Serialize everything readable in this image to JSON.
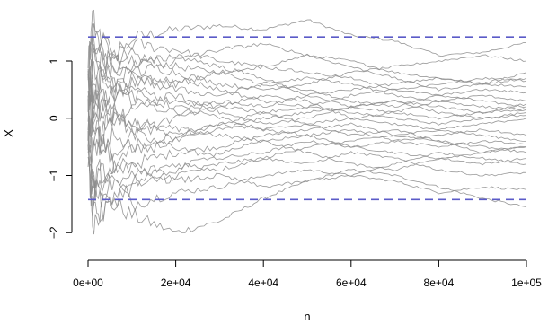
{
  "chart_data": {
    "type": "line",
    "title": "",
    "xlabel": "n",
    "ylabel": "X",
    "xlim": [
      0,
      100000
    ],
    "ylim": [
      -2.2,
      1.8
    ],
    "x_ticks": [
      {
        "value": 0,
        "label": "0e+00"
      },
      {
        "value": 20000,
        "label": "2e+04"
      },
      {
        "value": 40000,
        "label": "4e+04"
      },
      {
        "value": 60000,
        "label": "6e+04"
      },
      {
        "value": 80000,
        "label": "8e+04"
      },
      {
        "value": 100000,
        "label": "1e+05"
      }
    ],
    "y_ticks": [
      {
        "value": -2,
        "label": "−2"
      },
      {
        "value": -1,
        "label": "−1"
      },
      {
        "value": 0,
        "label": "0"
      },
      {
        "value": 1,
        "label": "1"
      }
    ],
    "reference_lines": [
      {
        "axis": "y",
        "value": 1.42,
        "style": "dashed",
        "color": "#5b5bc8"
      },
      {
        "axis": "y",
        "value": -1.42,
        "style": "dashed",
        "color": "#5b5bc8"
      }
    ],
    "series_color": "#8c8c8c",
    "grid": false,
    "legend": "none",
    "series": [
      {
        "x": [
          0,
          1000,
          3000,
          6000,
          10000,
          20000,
          30000,
          40000,
          50000,
          60000,
          70000,
          80000,
          90000,
          100000
        ],
        "values": [
          0.6,
          1.5,
          1.2,
          0.9,
          1.4,
          1.55,
          1.62,
          1.55,
          1.72,
          1.45,
          1.35,
          1.1,
          1.15,
          1.32
        ]
      },
      {
        "x": [
          0,
          1000,
          3000,
          6000,
          10000,
          20000,
          30000,
          40000,
          50000,
          60000,
          70000,
          80000,
          90000,
          100000
        ],
        "values": [
          -0.4,
          -1.8,
          -1.6,
          -1.5,
          -1.7,
          -2.0,
          -1.8,
          -1.4,
          -1.1,
          -0.9,
          -1.0,
          -1.2,
          -1.4,
          -1.55
        ]
      },
      {
        "x": [
          0,
          1000,
          3000,
          6000,
          10000,
          20000,
          30000,
          40000,
          50000,
          60000,
          70000,
          80000,
          90000,
          100000
        ],
        "values": [
          0.2,
          1.2,
          1.0,
          0.7,
          1.1,
          0.9,
          0.8,
          0.6,
          0.5,
          0.3,
          0.2,
          0.4,
          0.3,
          0.2
        ]
      },
      {
        "x": [
          0,
          1000,
          3000,
          6000,
          10000,
          20000,
          30000,
          40000,
          50000,
          60000,
          70000,
          80000,
          90000,
          100000
        ],
        "values": [
          -0.3,
          -1.4,
          -1.2,
          -1.0,
          -0.8,
          -0.6,
          -0.5,
          -0.3,
          -0.2,
          -0.1,
          -0.3,
          -0.4,
          -0.5,
          -0.6
        ]
      },
      {
        "x": [
          0,
          1000,
          3000,
          6000,
          10000,
          20000,
          30000,
          40000,
          50000,
          60000,
          70000,
          80000,
          90000,
          100000
        ],
        "values": [
          0.5,
          0.9,
          0.7,
          1.1,
          1.3,
          1.2,
          1.0,
          0.9,
          1.1,
          1.0,
          0.8,
          0.7,
          0.6,
          0.7
        ]
      },
      {
        "x": [
          0,
          1000,
          3000,
          6000,
          10000,
          20000,
          30000,
          40000,
          50000,
          60000,
          70000,
          80000,
          90000,
          100000
        ],
        "values": [
          -0.6,
          -1.0,
          -1.3,
          -1.1,
          -1.5,
          -1.3,
          -1.2,
          -1.0,
          -0.9,
          -1.0,
          -1.1,
          -1.3,
          -1.2,
          -1.25
        ]
      },
      {
        "x": [
          0,
          1000,
          3000,
          6000,
          10000,
          20000,
          30000,
          40000,
          50000,
          60000,
          70000,
          80000,
          90000,
          100000
        ],
        "values": [
          0.1,
          0.6,
          0.3,
          -0.2,
          0.2,
          0.4,
          0.1,
          -0.1,
          0.0,
          0.2,
          0.3,
          0.1,
          0.0,
          0.1
        ]
      },
      {
        "x": [
          0,
          1000,
          3000,
          6000,
          10000,
          20000,
          30000,
          40000,
          50000,
          60000,
          70000,
          80000,
          90000,
          100000
        ],
        "values": [
          -0.1,
          -0.7,
          -0.4,
          -0.6,
          -0.3,
          -0.5,
          -0.7,
          -0.6,
          -0.4,
          -0.5,
          -0.6,
          -0.7,
          -0.8,
          -0.7
        ]
      },
      {
        "x": [
          0,
          1000,
          3000,
          6000,
          10000,
          20000,
          30000,
          40000,
          50000,
          60000,
          70000,
          80000,
          90000,
          100000
        ],
        "values": [
          0.8,
          1.7,
          1.4,
          1.2,
          1.0,
          0.8,
          0.6,
          0.5,
          0.6,
          0.8,
          0.9,
          1.0,
          1.1,
          1.0
        ]
      },
      {
        "x": [
          0,
          1000,
          3000,
          6000,
          10000,
          20000,
          30000,
          40000,
          50000,
          60000,
          70000,
          80000,
          90000,
          100000
        ],
        "values": [
          -0.8,
          -1.5,
          -1.7,
          -1.4,
          -1.2,
          -1.0,
          -0.8,
          -0.7,
          -0.5,
          -0.4,
          -0.3,
          -0.2,
          -0.3,
          -0.4
        ]
      },
      {
        "x": [
          0,
          1000,
          3000,
          6000,
          10000,
          20000,
          30000,
          40000,
          50000,
          60000,
          70000,
          80000,
          90000,
          100000
        ],
        "values": [
          0.3,
          0.2,
          0.5,
          0.4,
          0.6,
          0.7,
          0.5,
          0.3,
          0.2,
          0.1,
          0.0,
          -0.1,
          0.0,
          0.05
        ]
      },
      {
        "x": [
          0,
          1000,
          3000,
          6000,
          10000,
          20000,
          30000,
          40000,
          50000,
          60000,
          70000,
          80000,
          90000,
          100000
        ],
        "values": [
          -0.2,
          0.1,
          -0.3,
          0.2,
          -0.1,
          -0.2,
          -0.3,
          -0.4,
          -0.6,
          -0.8,
          -0.9,
          -0.7,
          -0.6,
          -0.5
        ]
      },
      {
        "x": [
          0,
          1000,
          3000,
          6000,
          10000,
          20000,
          30000,
          40000,
          50000,
          60000,
          70000,
          80000,
          90000,
          100000
        ],
        "values": [
          0.4,
          1.0,
          1.3,
          1.0,
          0.8,
          1.0,
          1.2,
          1.3,
          1.1,
          0.9,
          0.7,
          0.5,
          0.6,
          0.8
        ]
      },
      {
        "x": [
          0,
          1000,
          3000,
          6000,
          10000,
          20000,
          30000,
          40000,
          50000,
          60000,
          70000,
          80000,
          90000,
          100000
        ],
        "values": [
          -0.5,
          -1.1,
          -0.9,
          -1.2,
          -1.0,
          -0.8,
          -0.9,
          -0.7,
          -0.8,
          -0.6,
          -0.7,
          -0.9,
          -1.0,
          -0.95
        ]
      },
      {
        "x": [
          0,
          1000,
          3000,
          6000,
          10000,
          20000,
          30000,
          40000,
          50000,
          60000,
          70000,
          80000,
          90000,
          100000
        ],
        "values": [
          0.0,
          -0.3,
          0.2,
          0.5,
          0.3,
          0.1,
          0.3,
          0.2,
          0.4,
          0.5,
          0.6,
          0.7,
          0.6,
          0.55
        ]
      },
      {
        "x": [
          0,
          1000,
          3000,
          6000,
          10000,
          20000,
          30000,
          40000,
          50000,
          60000,
          70000,
          80000,
          90000,
          100000
        ],
        "values": [
          0.6,
          0.4,
          0.8,
          0.6,
          0.4,
          0.2,
          0.0,
          -0.2,
          -0.3,
          -0.2,
          -0.4,
          -0.3,
          -0.2,
          -0.3
        ]
      },
      {
        "x": [
          0,
          1000,
          3000,
          6000,
          10000,
          20000,
          30000,
          40000,
          50000,
          60000,
          70000,
          80000,
          90000,
          100000
        ],
        "values": [
          -0.7,
          -0.2,
          -0.5,
          -0.8,
          -0.6,
          -0.4,
          -0.2,
          0.0,
          0.1,
          0.2,
          0.1,
          0.3,
          0.4,
          0.3
        ]
      },
      {
        "x": [
          0,
          1000,
          3000,
          6000,
          10000,
          20000,
          30000,
          40000,
          50000,
          60000,
          70000,
          80000,
          90000,
          100000
        ],
        "values": [
          0.9,
          1.4,
          1.1,
          0.9,
          0.7,
          0.5,
          0.4,
          0.6,
          0.7,
          0.6,
          0.4,
          0.3,
          0.2,
          0.15
        ]
      },
      {
        "x": [
          0,
          1000,
          3000,
          6000,
          10000,
          20000,
          30000,
          40000,
          50000,
          60000,
          70000,
          80000,
          90000,
          100000
        ],
        "values": [
          -0.9,
          -1.3,
          -1.0,
          -0.8,
          -0.9,
          -1.1,
          -1.0,
          -1.2,
          -1.1,
          -1.0,
          -0.8,
          -0.6,
          -0.7,
          -0.8
        ]
      },
      {
        "x": [
          0,
          1000,
          3000,
          6000,
          10000,
          20000,
          30000,
          40000,
          50000,
          60000,
          70000,
          80000,
          90000,
          100000
        ],
        "values": [
          0.2,
          -0.5,
          -0.2,
          0.1,
          -0.2,
          0.0,
          0.2,
          0.4,
          0.3,
          0.0,
          -0.1,
          -0.2,
          -0.1,
          0.0
        ]
      },
      {
        "x": [
          0,
          1000,
          3000,
          6000,
          10000,
          20000,
          30000,
          40000,
          50000,
          60000,
          70000,
          80000,
          90000,
          100000
        ],
        "values": [
          -0.3,
          0.5,
          0.8,
          0.5,
          0.7,
          0.6,
          0.8,
          0.9,
          0.8,
          0.7,
          0.5,
          0.4,
          0.5,
          0.45
        ]
      },
      {
        "x": [
          0,
          1000,
          3000,
          6000,
          10000,
          20000,
          30000,
          40000,
          50000,
          60000,
          70000,
          80000,
          90000,
          100000
        ],
        "values": [
          0.7,
          0.0,
          -0.5,
          -0.3,
          -0.5,
          -0.3,
          -0.1,
          -0.2,
          -0.1,
          -0.3,
          -0.2,
          -0.4,
          -0.6,
          -0.5
        ]
      },
      {
        "x": [
          0,
          1000,
          3000,
          6000,
          10000,
          20000,
          30000,
          40000,
          50000,
          60000,
          70000,
          80000,
          90000,
          100000
        ],
        "values": [
          -0.1,
          1.1,
          0.9,
          0.6,
          0.9,
          1.1,
          0.9,
          0.7,
          0.4,
          0.2,
          0.3,
          0.2,
          0.1,
          0.25
        ]
      },
      {
        "x": [
          0,
          1000,
          3000,
          6000,
          10000,
          20000,
          30000,
          40000,
          50000,
          60000,
          70000,
          80000,
          90000,
          100000
        ],
        "values": [
          0.1,
          -1.2,
          -1.4,
          -1.3,
          -1.1,
          -0.9,
          -0.6,
          -0.4,
          -0.3,
          -0.5,
          -0.4,
          -0.5,
          -0.4,
          -0.45
        ]
      },
      {
        "x": [
          0,
          1000,
          3000,
          6000,
          10000,
          20000,
          30000,
          40000,
          50000,
          60000,
          70000,
          80000,
          90000,
          100000
        ],
        "values": [
          0.5,
          0.3,
          0.0,
          0.3,
          0.5,
          0.3,
          0.2,
          0.1,
          -0.1,
          0.0,
          0.1,
          0.0,
          0.1,
          0.15
        ]
      },
      {
        "x": [
          0,
          1000,
          3000,
          6000,
          10000,
          20000,
          30000,
          40000,
          50000,
          60000,
          70000,
          80000,
          90000,
          100000
        ],
        "values": [
          -0.4,
          -0.1,
          0.4,
          0.1,
          -0.1,
          -0.3,
          -0.1,
          0.1,
          0.2,
          0.4,
          0.5,
          0.6,
          0.7,
          0.65
        ]
      }
    ]
  }
}
